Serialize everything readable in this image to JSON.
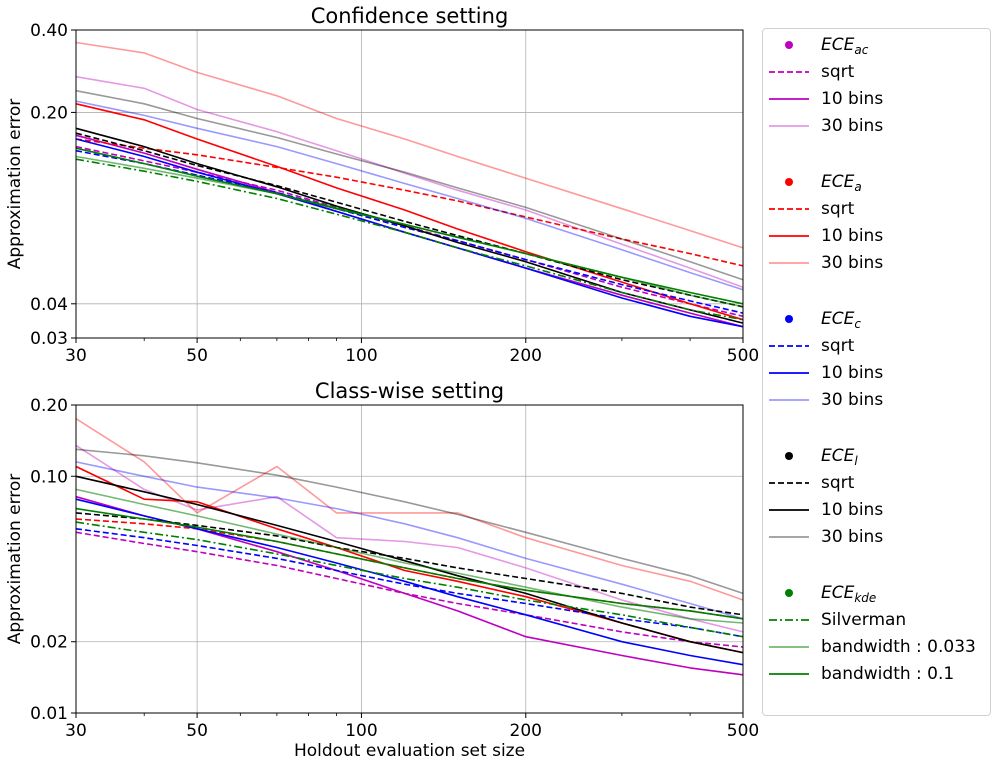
{
  "chart_data": [
    {
      "type": "line",
      "title": "Confidence setting",
      "xlabel": "",
      "ylabel": "Approximation error",
      "xscale": "log",
      "yscale": "log",
      "xlim": [
        30,
        500
      ],
      "ylim": [
        0.03,
        0.4
      ],
      "xticks": [
        30,
        50,
        100,
        200,
        500
      ],
      "xtick_labels": [
        "30",
        "50",
        "100",
        "200",
        "500"
      ],
      "yticks": [
        0.03,
        0.04,
        0.2,
        0.4
      ],
      "ytick_labels": [
        "0.03",
        "0.04",
        "0.20",
        "0.40"
      ],
      "grid": true,
      "x": [
        30,
        40,
        50,
        70,
        90,
        120,
        150,
        200,
        300,
        400,
        500
      ],
      "series": [
        {
          "group": "ac",
          "label": "sqrt",
          "color": "#bf00bf",
          "dash": "dashed",
          "opacity": 1,
          "values": [
            0.15,
            0.133,
            0.121,
            0.104,
            0.09,
            0.077,
            0.068,
            0.058,
            0.046,
            0.04,
            0.036
          ]
        },
        {
          "group": "ac",
          "label": "10 bins",
          "color": "#bf00bf",
          "dash": "solid",
          "opacity": 1,
          "values": [
            0.165,
            0.142,
            0.124,
            0.102,
            0.087,
            0.073,
            0.064,
            0.054,
            0.043,
            0.037,
            0.033
          ]
        },
        {
          "group": "ac",
          "label": "30 bins",
          "color": "#bf00bf",
          "dash": "solid",
          "opacity": 0.4,
          "values": [
            0.27,
            0.245,
            0.205,
            0.17,
            0.145,
            0.12,
            0.104,
            0.088,
            0.066,
            0.054,
            0.046
          ]
        },
        {
          "group": "a",
          "label": "sqrt",
          "color": "#ff0000",
          "dash": "dashed",
          "opacity": 1,
          "values": [
            0.16,
            0.148,
            0.14,
            0.126,
            0.116,
            0.104,
            0.095,
            0.083,
            0.069,
            0.061,
            0.055
          ]
        },
        {
          "group": "a",
          "label": "10 bins",
          "color": "#ff0000",
          "dash": "solid",
          "opacity": 1,
          "values": [
            0.215,
            0.188,
            0.16,
            0.127,
            0.106,
            0.088,
            0.075,
            0.062,
            0.048,
            0.04,
            0.035
          ]
        },
        {
          "group": "a",
          "label": "30 bins",
          "color": "#ff0000",
          "dash": "solid",
          "opacity": 0.4,
          "values": [
            0.36,
            0.33,
            0.28,
            0.23,
            0.19,
            0.16,
            0.138,
            0.115,
            0.089,
            0.074,
            0.064
          ]
        },
        {
          "group": "c",
          "label": "sqrt",
          "color": "#0000ff",
          "dash": "dashed",
          "opacity": 1,
          "values": [
            0.145,
            0.13,
            0.118,
            0.102,
            0.089,
            0.076,
            0.068,
            0.058,
            0.047,
            0.041,
            0.037
          ]
        },
        {
          "group": "c",
          "label": "10 bins",
          "color": "#0000ff",
          "dash": "solid",
          "opacity": 1,
          "values": [
            0.16,
            0.138,
            0.121,
            0.101,
            0.087,
            0.073,
            0.064,
            0.054,
            0.042,
            0.036,
            0.033
          ]
        },
        {
          "group": "c",
          "label": "30 bins",
          "color": "#0000ff",
          "dash": "solid",
          "opacity": 0.4,
          "values": [
            0.22,
            0.195,
            0.175,
            0.15,
            0.13,
            0.11,
            0.097,
            0.082,
            0.063,
            0.052,
            0.045
          ]
        },
        {
          "group": "l",
          "label": "sqrt",
          "color": "#000000",
          "dash": "dashed",
          "opacity": 1,
          "values": [
            0.168,
            0.145,
            0.128,
            0.108,
            0.094,
            0.08,
            0.071,
            0.061,
            0.049,
            0.043,
            0.039
          ]
        },
        {
          "group": "l",
          "label": "10 bins",
          "color": "#000000",
          "dash": "solid",
          "opacity": 1,
          "values": [
            0.175,
            0.15,
            0.13,
            0.107,
            0.091,
            0.077,
            0.067,
            0.057,
            0.044,
            0.038,
            0.034
          ]
        },
        {
          "group": "l",
          "label": "30 bins",
          "color": "#000000",
          "dash": "solid",
          "opacity": 0.4,
          "values": [
            0.24,
            0.215,
            0.19,
            0.162,
            0.141,
            0.121,
            0.106,
            0.09,
            0.069,
            0.057,
            0.049
          ]
        },
        {
          "group": "kde",
          "label": "Silverman",
          "color": "#008000",
          "dash": "dashdot",
          "opacity": 1,
          "values": [
            0.135,
            0.122,
            0.112,
            0.097,
            0.085,
            0.073,
            0.064,
            0.055,
            0.044,
            0.038,
            0.035
          ]
        },
        {
          "group": "kde",
          "label": "bandwidth : 0.033",
          "color": "#008000",
          "dash": "solid",
          "opacity": 0.55,
          "values": [
            0.138,
            0.125,
            0.115,
            0.101,
            0.09,
            0.078,
            0.07,
            0.061,
            0.05,
            0.043,
            0.039
          ]
        },
        {
          "group": "kde",
          "label": "bandwidth : 0.1",
          "color": "#008000",
          "dash": "solid",
          "opacity": 1,
          "values": [
            0.148,
            0.13,
            0.117,
            0.101,
            0.089,
            0.078,
            0.07,
            0.061,
            0.05,
            0.044,
            0.04
          ]
        }
      ]
    },
    {
      "type": "line",
      "title": "Class-wise setting",
      "xlabel": "Holdout evaluation set size",
      "ylabel": "Approximation error",
      "xscale": "log",
      "yscale": "log",
      "xlim": [
        30,
        500
      ],
      "ylim": [
        0.01,
        0.2
      ],
      "xticks": [
        30,
        50,
        100,
        200,
        500
      ],
      "xtick_labels": [
        "30",
        "50",
        "100",
        "200",
        "500"
      ],
      "yticks": [
        0.01,
        0.02,
        0.1,
        0.2
      ],
      "ytick_labels": [
        "0.01",
        "0.02",
        "0.10",
        "0.20"
      ],
      "grid": true,
      "x": [
        30,
        40,
        50,
        70,
        90,
        120,
        150,
        200,
        300,
        400,
        500
      ],
      "series": [
        {
          "group": "ac",
          "label": "sqrt",
          "color": "#bf00bf",
          "dash": "dashed",
          "opacity": 1,
          "values": [
            0.058,
            0.052,
            0.048,
            0.042,
            0.037,
            0.032,
            0.029,
            0.026,
            0.022,
            0.02,
            0.019
          ]
        },
        {
          "group": "ac",
          "label": "10 bins",
          "color": "#bf00bf",
          "dash": "solid",
          "opacity": 1,
          "values": [
            0.082,
            0.068,
            0.06,
            0.048,
            0.04,
            0.032,
            0.027,
            0.021,
            0.0175,
            0.0155,
            0.0145
          ]
        },
        {
          "group": "ac",
          "label": "30 bins",
          "color": "#bf00bf",
          "dash": "solid",
          "opacity": 0.4,
          "values": [
            0.135,
            0.088,
            0.072,
            0.082,
            0.055,
            0.053,
            0.05,
            0.041,
            0.03,
            0.025,
            0.022
          ]
        },
        {
          "group": "a",
          "label": "sqrt",
          "color": "#ff0000",
          "dash": "dashed",
          "opacity": 1,
          "values": [
            0.066,
            0.063,
            0.06,
            0.053,
            0.047,
            0.041,
            0.037,
            0.033,
            0.029,
            0.027,
            0.025
          ]
        },
        {
          "group": "a",
          "label": "10 bins",
          "color": "#ff0000",
          "dash": "solid",
          "opacity": 1,
          "values": [
            0.11,
            0.08,
            0.078,
            0.06,
            0.05,
            0.04,
            0.036,
            0.031,
            0.024,
            0.02,
            0.018
          ]
        },
        {
          "group": "a",
          "label": "30 bins",
          "color": "#ff0000",
          "dash": "solid",
          "opacity": 0.4,
          "values": [
            0.175,
            0.115,
            0.07,
            0.11,
            0.07,
            0.07,
            0.07,
            0.055,
            0.042,
            0.036,
            0.03
          ]
        },
        {
          "group": "c",
          "label": "sqrt",
          "color": "#0000ff",
          "dash": "dashed",
          "opacity": 1,
          "values": [
            0.06,
            0.055,
            0.051,
            0.045,
            0.04,
            0.035,
            0.032,
            0.029,
            0.025,
            0.023,
            0.021
          ]
        },
        {
          "group": "c",
          "label": "10 bins",
          "color": "#0000ff",
          "dash": "solid",
          "opacity": 1,
          "values": [
            0.08,
            0.068,
            0.06,
            0.05,
            0.043,
            0.036,
            0.031,
            0.026,
            0.02,
            0.0175,
            0.016
          ]
        },
        {
          "group": "c",
          "label": "30 bins",
          "color": "#0000ff",
          "dash": "solid",
          "opacity": 0.4,
          "values": [
            0.115,
            0.1,
            0.09,
            0.081,
            0.073,
            0.063,
            0.055,
            0.045,
            0.035,
            0.029,
            0.025
          ]
        },
        {
          "group": "l",
          "label": "sqrt",
          "color": "#000000",
          "dash": "dashed",
          "opacity": 1,
          "values": [
            0.07,
            0.066,
            0.062,
            0.056,
            0.05,
            0.045,
            0.041,
            0.037,
            0.032,
            0.028,
            0.026
          ]
        },
        {
          "group": "l",
          "label": "10 bins",
          "color": "#000000",
          "dash": "solid",
          "opacity": 1,
          "values": [
            0.1,
            0.086,
            0.076,
            0.062,
            0.053,
            0.044,
            0.038,
            0.032,
            0.024,
            0.02,
            0.018
          ]
        },
        {
          "group": "l",
          "label": "30 bins",
          "color": "#000000",
          "dash": "solid",
          "opacity": 0.4,
          "values": [
            0.13,
            0.122,
            0.114,
            0.101,
            0.09,
            0.078,
            0.069,
            0.058,
            0.045,
            0.038,
            0.032
          ]
        },
        {
          "group": "kde",
          "label": "Silverman",
          "color": "#008000",
          "dash": "dashdot",
          "opacity": 1,
          "values": [
            0.064,
            0.058,
            0.054,
            0.047,
            0.042,
            0.037,
            0.034,
            0.03,
            0.026,
            0.023,
            0.021
          ]
        },
        {
          "group": "kde",
          "label": "bandwidth : 0.033",
          "color": "#008000",
          "dash": "solid",
          "opacity": 0.55,
          "values": [
            0.088,
            0.076,
            0.068,
            0.057,
            0.05,
            0.043,
            0.039,
            0.034,
            0.028,
            0.025,
            0.024
          ]
        },
        {
          "group": "kde",
          "label": "bandwidth : 0.1",
          "color": "#008000",
          "dash": "solid",
          "opacity": 1,
          "values": [
            0.073,
            0.066,
            0.061,
            0.053,
            0.047,
            0.041,
            0.037,
            0.033,
            0.029,
            0.027,
            0.025
          ]
        }
      ]
    }
  ],
  "legend": {
    "placement": "right",
    "groups": [
      {
        "key": "ac",
        "base": "ECE",
        "sub": "ac",
        "color": "#bf00bf",
        "items": [
          {
            "label": "sqrt",
            "dash": "dashed",
            "opacity": 1
          },
          {
            "label": "10 bins",
            "dash": "solid",
            "opacity": 1
          },
          {
            "label": "30 bins",
            "dash": "solid",
            "opacity": 0.4
          }
        ]
      },
      {
        "key": "a",
        "base": "ECE",
        "sub": "a",
        "color": "#ff0000",
        "items": [
          {
            "label": "sqrt",
            "dash": "dashed",
            "opacity": 1
          },
          {
            "label": "10 bins",
            "dash": "solid",
            "opacity": 1
          },
          {
            "label": "30 bins",
            "dash": "solid",
            "opacity": 0.4
          }
        ]
      },
      {
        "key": "c",
        "base": "ECE",
        "sub": "c",
        "color": "#0000ff",
        "items": [
          {
            "label": "sqrt",
            "dash": "dashed",
            "opacity": 1
          },
          {
            "label": "10 bins",
            "dash": "solid",
            "opacity": 1
          },
          {
            "label": "30 bins",
            "dash": "solid",
            "opacity": 0.4
          }
        ]
      },
      {
        "key": "l",
        "base": "ECE",
        "sub": "l",
        "color": "#000000",
        "items": [
          {
            "label": "sqrt",
            "dash": "dashed",
            "opacity": 1
          },
          {
            "label": "10 bins",
            "dash": "solid",
            "opacity": 1
          },
          {
            "label": "30 bins",
            "dash": "solid",
            "opacity": 0.4
          }
        ]
      },
      {
        "key": "kde",
        "base": "ECE",
        "sub": "kde",
        "color": "#008000",
        "items": [
          {
            "label": "Silverman",
            "dash": "dashdot",
            "opacity": 1
          },
          {
            "label": "bandwidth : 0.033",
            "dash": "solid",
            "opacity": 0.55
          },
          {
            "label": "bandwidth : 0.1",
            "dash": "solid",
            "opacity": 1
          }
        ]
      }
    ]
  }
}
